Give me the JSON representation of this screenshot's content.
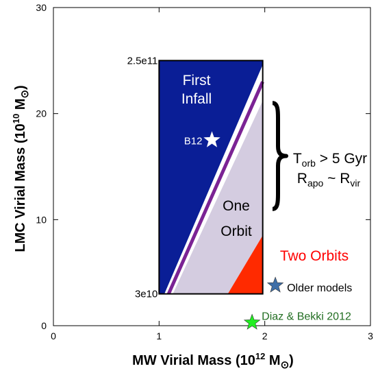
{
  "chart_data": {
    "type": "scatter",
    "xlabel": {
      "main": "MW Virial Mass (10",
      "sup": "12",
      "tail": " M"
    },
    "ylabel": {
      "main": "LMC Virial Mass (10",
      "sup": "10",
      "tail": " M"
    },
    "xlim": [
      0,
      3
    ],
    "ylim": [
      0,
      30
    ],
    "x_ticks": [
      "0",
      "1",
      "2",
      "3"
    ],
    "y_ticks": [
      "0",
      "10",
      "20",
      "30"
    ],
    "grid": false,
    "box": {
      "x": [
        1,
        2
      ],
      "y": [
        3,
        25
      ],
      "top_label": "2.5e11",
      "bottom_label": "3e10"
    },
    "regions": [
      {
        "name": "First Infall",
        "lines": [
          "First",
          "Infall"
        ],
        "color": "#0a1e96",
        "text_color": "#ffffff",
        "polygon": [
          [
            1,
            3
          ],
          [
            1,
            25
          ],
          [
            1.98,
            25
          ],
          [
            1.98,
            24.6
          ],
          [
            1.05,
            3
          ]
        ]
      },
      {
        "name": "One Orbit",
        "lines": [
          "One",
          "Orbit"
        ],
        "color": "#d4cce0",
        "text_color": "#000000",
        "polygon": [
          [
            1.13,
            3
          ],
          [
            1.98,
            21.2
          ],
          [
            1.98,
            8.5
          ],
          [
            1.65,
            3
          ]
        ]
      },
      {
        "name": "Two Orbits",
        "color": "#ff2a00",
        "text_color": "#ff0000",
        "polygon": [
          [
            1.65,
            3
          ],
          [
            1.98,
            8.5
          ],
          [
            1.98,
            3
          ]
        ]
      }
    ],
    "boundary_lines": [
      {
        "color": "#7b2394",
        "from": [
          1.09,
          3
        ],
        "to": [
          1.98,
          23.0
        ]
      }
    ],
    "points": [
      {
        "label": "B12",
        "x": 1.5,
        "y": 17.5,
        "color": "#ffffff",
        "label_color": "#ffffff"
      },
      {
        "label": "Older models",
        "x": 2.1,
        "y": 3.8,
        "color": "#3f6fa8",
        "label_color": "#000000"
      },
      {
        "label": "Diaz & Bekki 2012",
        "x": 1.88,
        "y": 0.3,
        "color": "#22ee22",
        "label_color": "#226e22"
      }
    ],
    "annotation": {
      "bracket_y": [
        11,
        21
      ],
      "t_main": "T",
      "t_sub": "orb",
      "t_tail": " > 5 Gyr",
      "r_main": "R",
      "r_sub": "apo",
      "r_mid": " ~ R",
      "r_sub2": "vir"
    }
  }
}
